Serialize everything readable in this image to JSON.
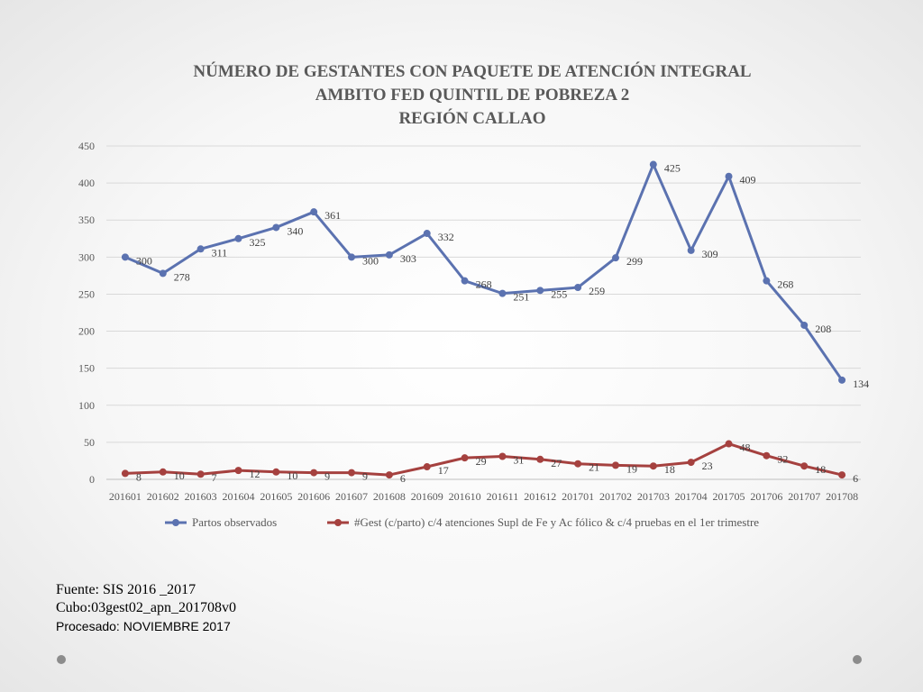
{
  "chart_data": {
    "type": "line",
    "title_lines": [
      "NÚMERO DE GESTANTES CON PAQUETE DE ATENCIÓN INTEGRAL",
      "AMBITO FED QUINTIL DE POBREZA 2",
      "REGIÓN CALLAO"
    ],
    "categories": [
      "201601",
      "201602",
      "201603",
      "201604",
      "201605",
      "201606",
      "201607",
      "201608",
      "201609",
      "201610",
      "201611",
      "201612",
      "201701",
      "201702",
      "201703",
      "201704",
      "201705",
      "201706",
      "201707",
      "201708"
    ],
    "ylim": [
      0,
      450
    ],
    "yticks": [
      0,
      50,
      100,
      150,
      200,
      250,
      300,
      350,
      400,
      450
    ],
    "grid": true,
    "legend_position": "bottom",
    "series": [
      {
        "name": "Partos observados",
        "color": "#5b72b0",
        "values": [
          300,
          278,
          311,
          325,
          340,
          361,
          300,
          303,
          332,
          268,
          251,
          255,
          259,
          299,
          425,
          309,
          409,
          268,
          208,
          134
        ]
      },
      {
        "name": "#Gest (c/parto) c/4 atenciones Supl de Fe y Ac fólico & c/4 pruebas en el 1er trimestre",
        "color": "#a5413f",
        "values": [
          8,
          10,
          7,
          12,
          10,
          9,
          9,
          6,
          17,
          29,
          31,
          27,
          21,
          19,
          18,
          23,
          48,
          32,
          18,
          6
        ]
      }
    ]
  },
  "footer": {
    "source": "Fuente: SIS 2016 _2017",
    "cube": "Cubo:03gest02_apn_201708v0",
    "processed": "Procesado: NOVIEMBRE 2017"
  }
}
